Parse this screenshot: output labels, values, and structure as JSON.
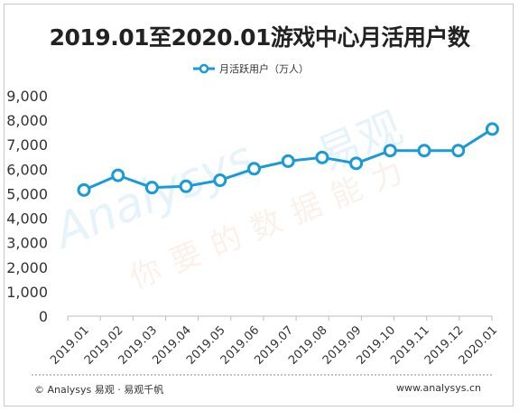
{
  "chart_data": {
    "type": "line",
    "title": "2019.01至2020.01游戏中心月活用户数",
    "categories": [
      "2019.01",
      "2019.02",
      "2019.03",
      "2019.04",
      "2019.05",
      "2019.06",
      "2019.07",
      "2019.08",
      "2019.09",
      "2019.10",
      "2019.11",
      "2019.12",
      "2020.01"
    ],
    "series": [
      {
        "name": "月活跃用户（万人）",
        "values": [
          5150,
          5750,
          5250,
          5300,
          5550,
          6020,
          6330,
          6480,
          6240,
          6760,
          6760,
          6760,
          7640
        ]
      }
    ],
    "yticks": [
      "0",
      "1,000",
      "2,000",
      "3,000",
      "4,000",
      "5,000",
      "6,000",
      "7,000",
      "8,000",
      "9,000"
    ],
    "ylim": [
      0,
      9000
    ],
    "grid": false,
    "legend_position": "top-center",
    "line_color": "#1a9ad6",
    "marker_fill": "#ffffff"
  },
  "watermark": {
    "brand_en": "Analysys",
    "brand_cn": "易观",
    "slogan": "你要的数据能力"
  },
  "footer": {
    "left": "© Analysys 易观 · 易观千帆",
    "right": "www.analysys.cn"
  }
}
